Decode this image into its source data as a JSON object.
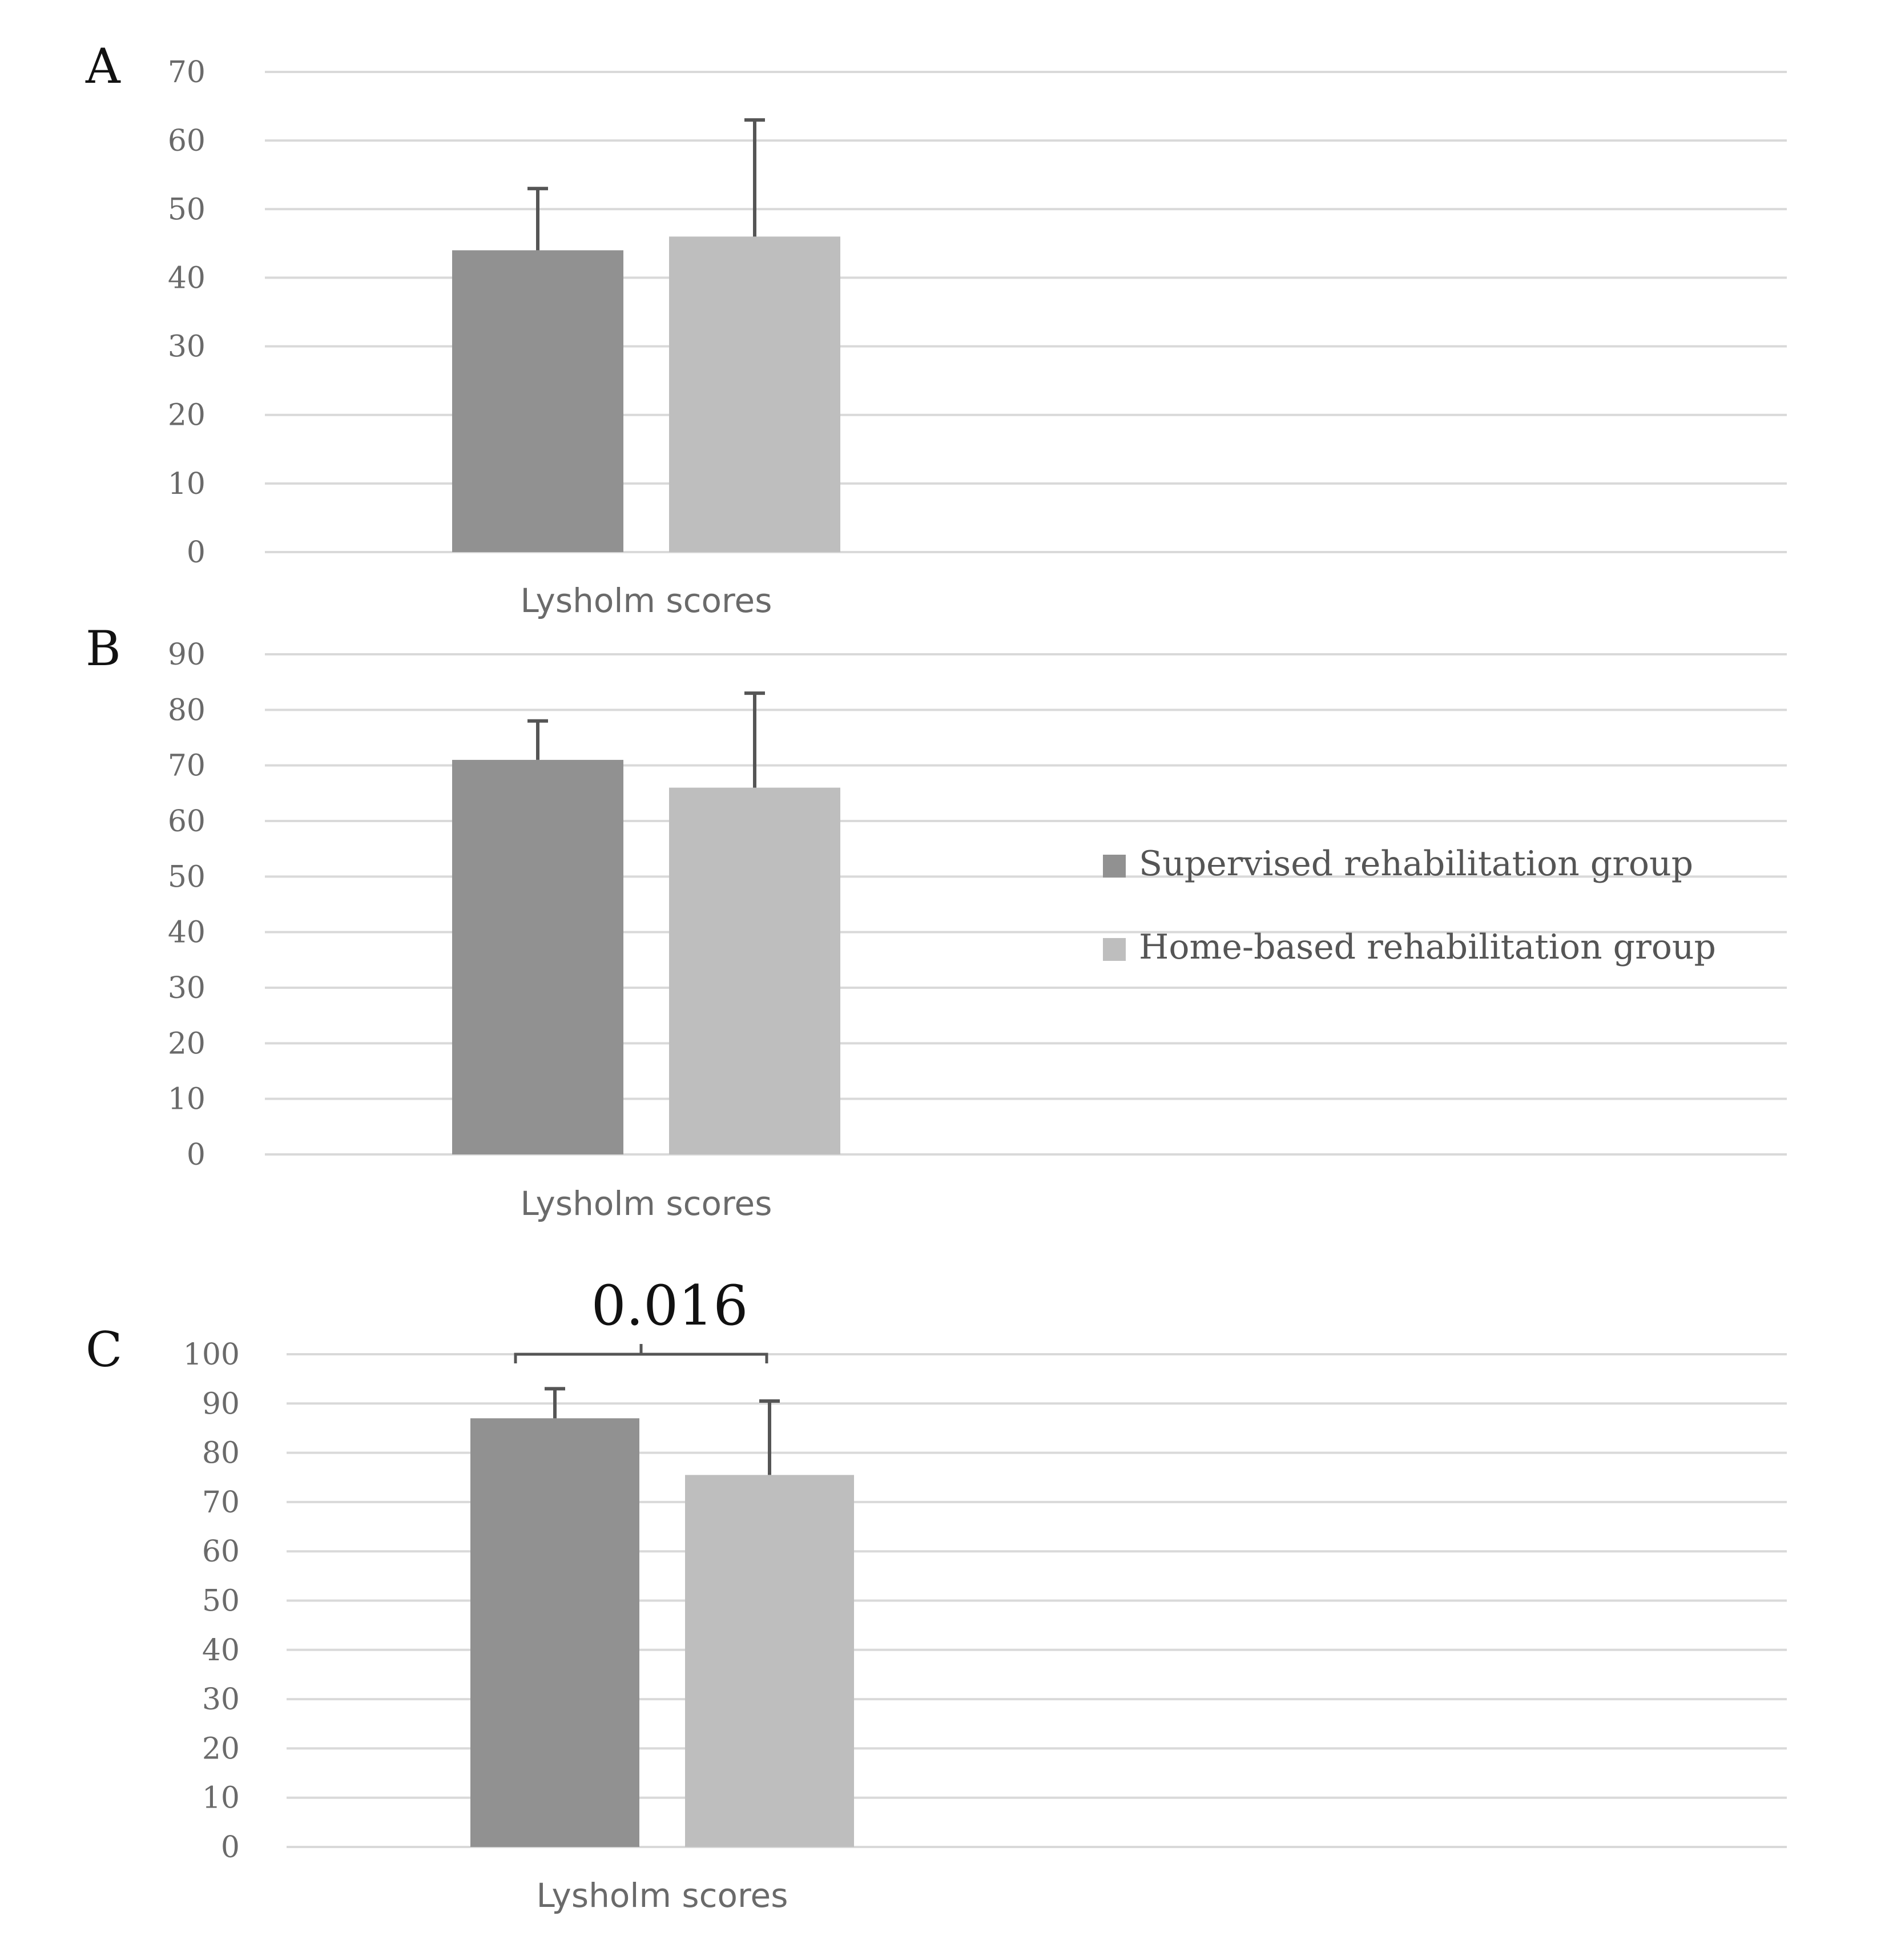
{
  "chart_data": [
    {
      "type": "bar",
      "panel": "A",
      "categories": [
        "Lysholm scores"
      ],
      "series": [
        {
          "name": "Supervised rehabilitation group",
          "values": [
            44
          ],
          "error": [
            9
          ],
          "color": "#919191"
        },
        {
          "name": "Home-based rehabilitation group",
          "values": [
            46
          ],
          "error": [
            17
          ],
          "color": "#bebebe"
        }
      ],
      "ylim": [
        0,
        70
      ],
      "yticks": [
        "0",
        "10",
        "20",
        "30",
        "40",
        "50",
        "60",
        "70"
      ],
      "grid": true
    },
    {
      "type": "bar",
      "panel": "B",
      "categories": [
        "Lysholm scores"
      ],
      "series": [
        {
          "name": "Supervised rehabilitation group",
          "values": [
            71
          ],
          "error": [
            7
          ],
          "color": "#919191"
        },
        {
          "name": "Home-based rehabilitation group",
          "values": [
            66
          ],
          "error": [
            17
          ],
          "color": "#bebebe"
        }
      ],
      "ylim": [
        0,
        90
      ],
      "yticks": [
        "0",
        "10",
        "20",
        "30",
        "40",
        "50",
        "60",
        "70",
        "80",
        "90"
      ],
      "grid": true,
      "legend": {
        "placement": "right",
        "entries": [
          "Supervised rehabilitation group",
          "Home-based rehabilitation group"
        ]
      }
    },
    {
      "type": "bar",
      "panel": "C",
      "categories": [
        "Lysholm scores"
      ],
      "series": [
        {
          "name": "Supervised rehabilitation group",
          "values": [
            87
          ],
          "error": [
            6
          ],
          "color": "#919191"
        },
        {
          "name": "Home-based rehabilitation group",
          "values": [
            75.5
          ],
          "error": [
            15
          ],
          "color": "#bebebe"
        }
      ],
      "ylim": [
        0,
        100
      ],
      "yticks": [
        "0",
        "10",
        "20",
        "30",
        "40",
        "50",
        "60",
        "70",
        "80",
        "90",
        "100"
      ],
      "grid": true,
      "annotation": {
        "text": "0.016",
        "type": "significance-bracket"
      }
    }
  ]
}
